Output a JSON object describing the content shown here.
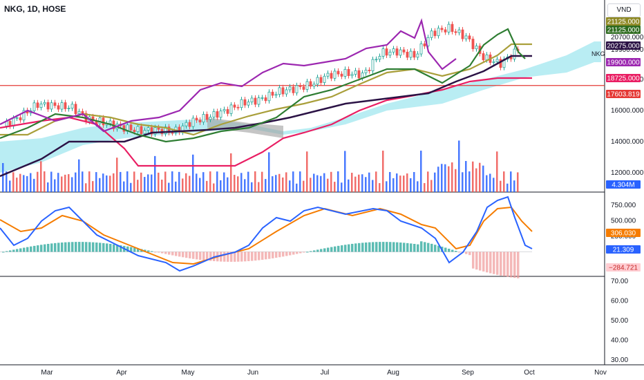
{
  "header": {
    "title": "NKG, 1D, HOSE",
    "currency": "VND",
    "symbol_tag": "NKG"
  },
  "colors": {
    "up": "#26a69a",
    "down": "#ef5350",
    "tenkan": "#2e7d32",
    "kijun": "#2b1245",
    "chikou": "#9c27b0",
    "span_a": "#a99f3a",
    "span_b": "#e91e63",
    "cloud": "#80deea",
    "cloud_bear": "#9e9e9e",
    "macd": "#2962ff",
    "signal": "#f57c00",
    "hline": "#e53935"
  },
  "x_axis": {
    "months": [
      "Mar",
      "Apr",
      "May",
      "Jun",
      "Jul",
      "Aug",
      "Sep",
      "Oct",
      "Nov"
    ]
  },
  "price_axis": {
    "ticks": [
      "20700.000",
      "19900.000",
      "18000.000",
      "16000.000",
      "14000.000",
      "12000.000"
    ],
    "badges": [
      {
        "text": "21125.000",
        "bg": "#8f8a26",
        "fg": "#ffffff"
      },
      {
        "text": "21125.000",
        "bg": "#2e6b1f",
        "fg": "#ffffff"
      },
      {
        "text": "20275.000",
        "bg": "#2b1245",
        "fg": "#ffffff"
      },
      {
        "text": "19900.000",
        "bg": "#9c27b0",
        "fg": "#ffffff"
      },
      {
        "text": "18725.000",
        "bg": "#e91e63",
        "fg": "#ffffff"
      },
      {
        "text": "17603.819",
        "bg": "#e53935",
        "fg": "#ffffff"
      },
      {
        "text": "4.304M",
        "bg": "#2962ff",
        "fg": "#ffffff"
      }
    ]
  },
  "macd_axis": {
    "ticks": [
      "750.000",
      "500.000",
      "250.000"
    ],
    "badges": [
      {
        "text": "306.030",
        "bg": "#f57c00",
        "fg": "#ffffff"
      },
      {
        "text": "21.309",
        "bg": "#2962ff",
        "fg": "#ffffff"
      },
      {
        "text": "−284.721",
        "bg": "#ffcdd2",
        "fg": "#c62828"
      }
    ]
  },
  "rsi_axis": {
    "ticks": [
      "70.00",
      "60.00",
      "50.00",
      "40.00",
      "30.00"
    ]
  },
  "chart_data": {
    "type": "line",
    "symbol": "NKG",
    "interval": "1D",
    "exchange": "HOSE",
    "months": [
      "Mar",
      "Apr",
      "May",
      "Jun",
      "Jul",
      "Aug",
      "Sep",
      "Oct",
      "Nov"
    ],
    "price_axis_ticks": [
      20700,
      19900,
      18000,
      16000,
      14000,
      12000
    ],
    "horizontal_line": 17603.819,
    "close_series": [
      15000,
      15600,
      16400,
      16300,
      16200,
      15400,
      15200,
      14900,
      14700,
      14750,
      14650,
      15300,
      15600,
      16000,
      16500,
      16700,
      17200,
      17400,
      17700,
      18300,
      18400,
      18300,
      19700,
      19800,
      19500,
      21000,
      21300,
      20700,
      19400,
      19000,
      19900
    ],
    "series": [
      {
        "name": "Tenkan-sen",
        "last": 21125
      },
      {
        "name": "Kijun-sen",
        "last": 20275
      },
      {
        "name": "Chikou span",
        "last": 19900
      },
      {
        "name": "Senkou span A",
        "last": 21125
      },
      {
        "name": "Senkou span B",
        "last": 18725
      }
    ],
    "volume_last": "4.304M",
    "macd": {
      "macd": 21.309,
      "signal": 306.03,
      "histogram": -284.721,
      "ticks": [
        750,
        500,
        250
      ]
    },
    "rsi_ticks": [
      70,
      60,
      50,
      40,
      30
    ]
  }
}
